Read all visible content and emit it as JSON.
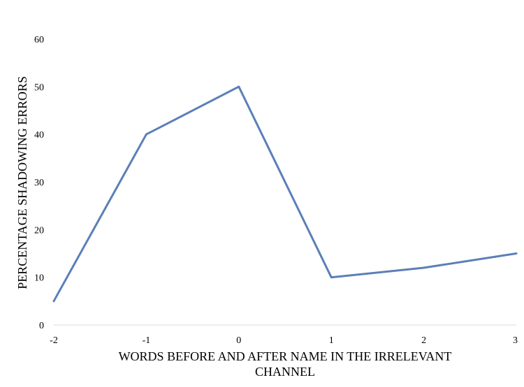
{
  "chart_data": {
    "type": "line",
    "x": [
      -2,
      -1,
      0,
      1,
      2,
      3
    ],
    "series": [
      {
        "values": [
          5,
          40,
          50,
          10,
          12,
          15
        ]
      }
    ],
    "xlabel": "WORDS BEFORE AND AFTER NAME IN THE IRRELEVANT CHANNEL",
    "xlabel_lines": [
      "WORDS BEFORE AND AFTER NAME IN THE IRRELEVANT",
      "CHANNEL"
    ],
    "ylabel": "PERCENTAGE SHADOWING ERRORS",
    "xlim": [
      -2,
      3
    ],
    "ylim": [
      0,
      60
    ],
    "xticks": [
      "-2",
      "-1",
      "0",
      "1",
      "2",
      "3"
    ],
    "yticks": [
      "0",
      "10",
      "20",
      "30",
      "40",
      "50",
      "60"
    ],
    "grid": false,
    "legend": "none",
    "colors": {
      "line": "#5b7fb7",
      "axis": "#d9d9d9"
    }
  }
}
